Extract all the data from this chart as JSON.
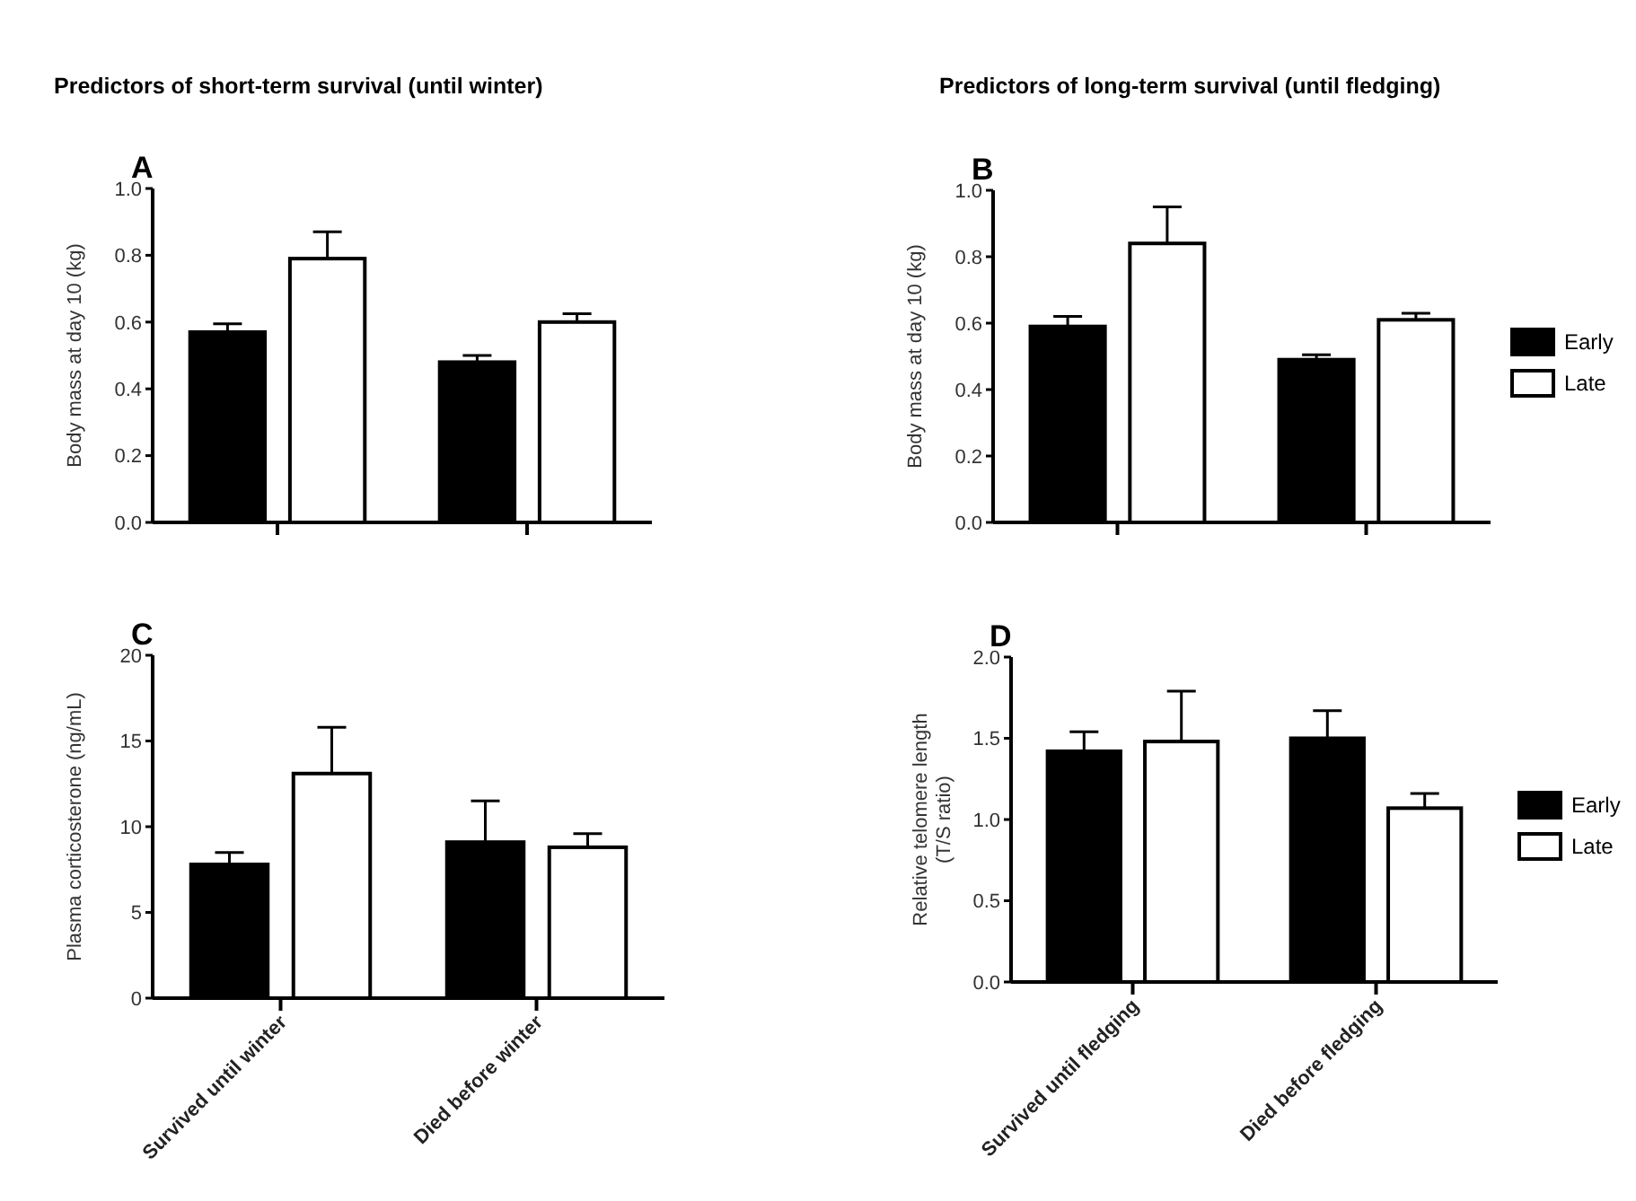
{
  "chart_data": [
    {
      "type": "bar",
      "title": "Predictors of short-term survival (until winter)",
      "annotations": [
        "A"
      ],
      "ylabel": "Body mass at day 10 (kg)",
      "categories": [
        null,
        null
      ],
      "tick_labels": "y",
      "ylim": [
        0,
        1
      ],
      "yticks": [
        {
          "value": 0,
          "label": "0.0"
        },
        0.2,
        0.4,
        0.6,
        0.8,
        {
          "value": 1,
          "label": "1.0"
        }
      ],
      "grid": false,
      "legend": false,
      "series": [
        {
          "color": "#000000",
          "values": [
            0.57,
            0.48
          ],
          "errors": [
            0.025,
            0.02
          ]
        },
        {
          "color": "#ffffff",
          "values": [
            0.79,
            0.6
          ],
          "errors": [
            0.08,
            0.025
          ]
        }
      ]
    },
    {
      "type": "bar",
      "title": "Predictors of long-term survival (until fledging)",
      "annotations": [
        "B"
      ],
      "ylabel": "Body mass at day 10 (kg)",
      "categories": [
        null,
        null
      ],
      "tick_labels": "y",
      "ylim": [
        0,
        1
      ],
      "yticks": [
        {
          "value": 0,
          "label": "0.0"
        },
        0.2,
        0.4,
        0.6,
        0.8,
        {
          "value": 1,
          "label": "1.0"
        }
      ],
      "grid": false,
      "legend": "right",
      "series": [
        {
          "name": "Early",
          "color": "#000000",
          "values": [
            0.59,
            0.49
          ],
          "errors": [
            0.03,
            0.015
          ]
        },
        {
          "name": "Late",
          "color": "#ffffff",
          "values": [
            0.84,
            0.61
          ],
          "errors": [
            0.11,
            0.02
          ]
        }
      ]
    },
    {
      "type": "bar",
      "annotations": [
        "C"
      ],
      "ylabel": "Plasma corticosterone (ng/mL)",
      "categories": [
        "Survived until winter",
        "Died before winter"
      ],
      "ylim": [
        0,
        20
      ],
      "yticks": [
        0,
        5,
        10,
        15,
        20
      ],
      "grid": false,
      "legend": false,
      "series": [
        {
          "color": "#000000",
          "values": [
            7.8,
            9.1
          ],
          "errors": [
            0.7,
            2.4
          ]
        },
        {
          "color": "#ffffff",
          "values": [
            13.1,
            8.8
          ],
          "errors": [
            2.7,
            0.8
          ]
        }
      ]
    },
    {
      "type": "bar",
      "annotations": [
        "D"
      ],
      "ylabel": "Relative telomere length\n(T/S ratio)",
      "categories": [
        "Survived until fledging",
        "Died before fledging"
      ],
      "ylim": [
        0,
        2
      ],
      "yticks": [
        {
          "value": 0,
          "label": "0.0"
        },
        0.5,
        {
          "value": 1,
          "label": "1.0"
        },
        1.5,
        {
          "value": 2,
          "label": "2.0"
        }
      ],
      "grid": false,
      "legend": "right",
      "series": [
        {
          "name": "Early",
          "color": "#000000",
          "values": [
            1.42,
            1.5
          ],
          "errors": [
            0.12,
            0.17
          ]
        },
        {
          "name": "Late",
          "color": "#ffffff",
          "values": [
            1.48,
            1.07
          ],
          "errors": [
            0.31,
            0.09
          ]
        }
      ]
    }
  ]
}
